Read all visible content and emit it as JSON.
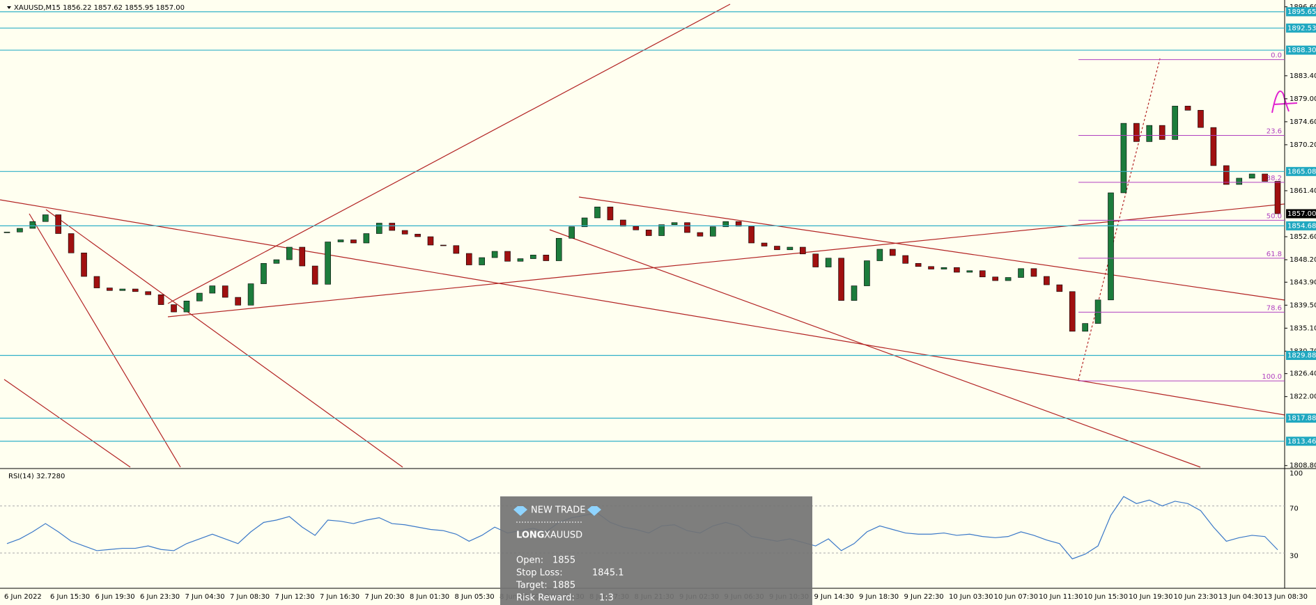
{
  "header": "XAUUSD,M15  1856.22 1857.62 1855.95 1857.00",
  "price_axis": {
    "ylim": [
      1808.5,
      1897.9
    ],
    "yticks": [
      {
        "value": 1896.6,
        "label": "1896.60"
      },
      {
        "value": 1883.4,
        "label": "1883.40"
      },
      {
        "value": 1879,
        "label": "1879.00"
      },
      {
        "value": 1874.6,
        "label": "1874.60"
      },
      {
        "value": 1870.2,
        "label": "1870.20"
      },
      {
        "value": 1861.4,
        "label": "1861.40"
      },
      {
        "value": 1852.6,
        "label": "1852.60"
      },
      {
        "value": 1848.2,
        "label": "1848.20"
      },
      {
        "value": 1843.9,
        "label": "1843.90"
      },
      {
        "value": 1839.5,
        "label": "1839.50"
      },
      {
        "value": 1835.1,
        "label": "1835.10"
      },
      {
        "value": 1830.7,
        "label": "1830.70"
      },
      {
        "value": 1826.4,
        "label": "1826.40"
      },
      {
        "value": 1822,
        "label": "1822.00"
      },
      {
        "value": 1808.8,
        "label": "1808.80"
      }
    ]
  },
  "levels": [
    1895.65,
    1892.53,
    {
      "value": 1888.3,
      "label": "1888.30"
    },
    1865.08,
    1854.68,
    1829.88,
    1817.88,
    1813.46
  ],
  "current_price": {
    "value": 1857,
    "label": "1857.00"
  },
  "candles": {
    "closes": [
      1853.5,
      1854.2,
      1855.5,
      1856.8,
      1853.2,
      1849.5,
      1845.0,
      1842.8,
      1842.3,
      1842.6,
      1842.1,
      1841.5,
      1839.6,
      1838.2,
      1840.3,
      1841.8,
      1843.2,
      1841.0,
      1839.5,
      1843.6,
      1847.5,
      1848.2,
      1850.6,
      1847.0,
      1843.5,
      1851.6,
      1852.0,
      1851.4,
      1853.2,
      1855.2,
      1853.8,
      1853.1,
      1852.6,
      1851.0,
      1850.9,
      1849.4,
      1847.2,
      1848.6,
      1849.8,
      1847.9,
      1848.4,
      1849.1,
      1848.0,
      1852.3,
      1854.5,
      1856.2,
      1858.3,
      1855.8,
      1854.6,
      1853.9,
      1852.8,
      1854.9,
      1855.3,
      1853.4,
      1852.7,
      1854.5,
      1855.5,
      1854.6,
      1851.4,
      1850.8,
      1850.1,
      1850.6,
      1849.3,
      1846.8,
      1848.5,
      1840.4,
      1843.2,
      1848.0,
      1850.2,
      1849.0,
      1847.5,
      1846.9,
      1846.4,
      1846.7,
      1845.8,
      1846.1,
      1844.9,
      1844.2,
      1844.8,
      1846.5,
      1845.0,
      1843.4,
      1842.1,
      1834.5,
      1836.0,
      1840.5,
      1861.0,
      1874.3,
      1870.8,
      1873.9,
      1871.2,
      1877.6,
      1876.8,
      1873.5,
      1866.2,
      1862.6,
      1863.8,
      1864.6,
      1863.2,
      1857.0
    ]
  },
  "fib": {
    "high": 1886.5,
    "low": 1825.0,
    "levels": [
      {
        "value": 0,
        "label": "0.0"
      },
      23.6,
      38.2,
      {
        "value": 50,
        "label": "50.0"
      },
      61.8,
      78.6,
      {
        "value": 100,
        "label": "100.0"
      }
    ]
  },
  "rsi": {
    "label": "RSI(14) 32.7280",
    "ylim": [
      0,
      100
    ],
    "yticks": [
      100,
      70,
      30
    ],
    "values": [
      38,
      42,
      48,
      55,
      48,
      40,
      36,
      32,
      33,
      34,
      34,
      36,
      33,
      32,
      38,
      42,
      46,
      42,
      38,
      48,
      56,
      58,
      61,
      52,
      45,
      58,
      57,
      55,
      58,
      60,
      55,
      54,
      52,
      50,
      49,
      46,
      40,
      45,
      52,
      47,
      49,
      51,
      48,
      56,
      60,
      62,
      64,
      56,
      52,
      50,
      47,
      53,
      54,
      49,
      47,
      53,
      56,
      53,
      44,
      42,
      40,
      42,
      39,
      36,
      42,
      32,
      38,
      48,
      53,
      50,
      47,
      46,
      46,
      47,
      45,
      46,
      44,
      43,
      44,
      48,
      45,
      41,
      38,
      25,
      29,
      36,
      62,
      78,
      72,
      75,
      70,
      74,
      72,
      66,
      52,
      40,
      43,
      45,
      44,
      32.7
    ]
  },
  "time_labels": [
    "6 Jun 2022",
    "6 Jun 15:30",
    "6 Jun 19:30",
    "6 Jun 23:30",
    "7 Jun 04:30",
    "7 Jun 08:30",
    "7 Jun 12:30",
    "7 Jun 16:30",
    "7 Jun 20:30",
    "8 Jun 01:30",
    "8 Jun 05:30",
    "8 Jun 09:30",
    "8 Jun 13:30",
    "8 Jun 17:30",
    "8 Jun 21:30",
    "9 Jun 02:30",
    "9 Jun 06:30",
    "9 Jun 10:30",
    "9 Jun 14:30",
    "9 Jun 18:30",
    "9 Jun 22:30",
    "10 Jun 03:30",
    "10 Jun 07:30",
    "10 Jun 11:30",
    "10 Jun 15:30",
    "10 Jun 19:30",
    "10 Jun 23:30",
    "13 Jun 04:30",
    "13 Jun 08:30"
  ],
  "trade_panel": {
    "title": "NEW TRADE",
    "side": "LONG",
    "symbol": "XAUUSD",
    "rows": [
      [
        "Open:",
        "1855"
      ],
      [
        "Stop Loss:",
        "1845.1"
      ],
      [
        "Target:",
        "1885"
      ],
      [
        "Risk Reward:",
        "1:3"
      ]
    ]
  }
}
